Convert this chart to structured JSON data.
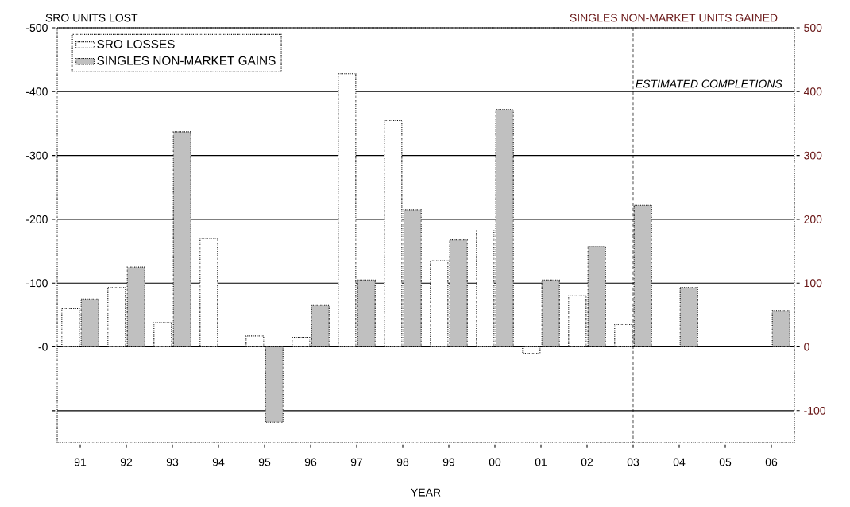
{
  "chart_data": {
    "type": "bar",
    "xlabel": "YEAR",
    "ylabel": "SRO UNITS LOST",
    "y2label": "SINGLES NON-MARKET UNITS GAINED",
    "categories": [
      "91",
      "92",
      "93",
      "94",
      "95",
      "96",
      "97",
      "98",
      "99",
      "00",
      "01",
      "02",
      "03",
      "04",
      "05",
      "06"
    ],
    "series": [
      {
        "name": "SRO LOSSES",
        "color": "#ffffff",
        "values": [
          -60,
          -93,
          -38,
          -170,
          -17,
          -15,
          -428,
          -355,
          -135,
          -183,
          10,
          -80,
          -35,
          null,
          null,
          null
        ]
      },
      {
        "name": "SINGLES NON-MARKET GAINS",
        "color": "#c0c0c0",
        "axis": "y2",
        "values": [
          75,
          125,
          337,
          null,
          -118,
          65,
          105,
          215,
          168,
          372,
          105,
          158,
          222,
          93,
          null,
          57
        ]
      }
    ],
    "ylim": [
      150,
      -500
    ],
    "yticks": [
      -500,
      -400,
      -300,
      -200,
      -100,
      {
        "value": 0,
        "label": "-0"
      },
      {
        "value": 100,
        "label": null
      }
    ],
    "y2lim": [
      -150,
      500
    ],
    "y2ticks": [
      -100,
      0,
      100,
      200,
      300,
      400,
      500
    ],
    "ref_lines": [
      {
        "axis": "x",
        "value": "03",
        "label": "ESTIMATED COMPLETIONS"
      }
    ],
    "grid": "y",
    "legend": "top left"
  }
}
